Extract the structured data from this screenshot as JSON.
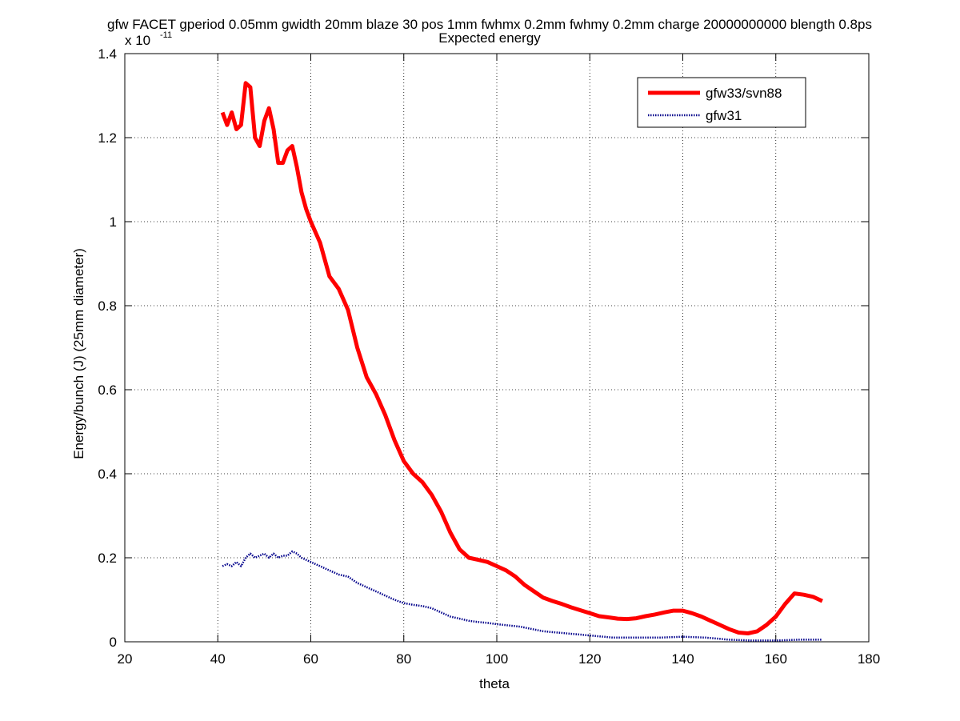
{
  "chart_data": {
    "type": "line",
    "title_lines": [
      "gfw FACET gperiod 0.05mm gwidth 20mm blaze 30 pos 1mm fwhmx 0.2mm fwhmy 0.2mm charge 20000000000 blength 0.8ps",
      "Expected energy"
    ],
    "xlabel": "theta",
    "ylabel": "Energy/bunch (J) (25mm diameter)",
    "y_exponent_label": {
      "base": "x 10",
      "exponent": "-11"
    },
    "xlim": [
      20,
      180
    ],
    "ylim": [
      0,
      1.4
    ],
    "x_ticks": [
      "20",
      "40",
      "60",
      "80",
      "100",
      "120",
      "140",
      "160",
      "180"
    ],
    "y_ticks": [
      "0",
      "0.2",
      "0.4",
      "0.6",
      "0.8",
      "1",
      "1.2",
      "1.4"
    ],
    "grid": true,
    "legend_position": "top-right",
    "series": [
      {
        "name": "gfw33/svn88",
        "color": "#ff0000",
        "style": "solid",
        "x": [
          41,
          42,
          43,
          44,
          45,
          46,
          47,
          48,
          49,
          50,
          51,
          52,
          53,
          54,
          55,
          56,
          57,
          58,
          59,
          60,
          62,
          64,
          66,
          68,
          70,
          72,
          74,
          76,
          78,
          80,
          82,
          84,
          86,
          88,
          90,
          92,
          94,
          96,
          98,
          100,
          102,
          104,
          106,
          108,
          110,
          112,
          114,
          116,
          118,
          120,
          122,
          124,
          126,
          128,
          130,
          132,
          134,
          136,
          138,
          140,
          142,
          144,
          146,
          148,
          150,
          152,
          154,
          156,
          158,
          160,
          162,
          164,
          166,
          168,
          170
        ],
        "y": [
          1.26,
          1.23,
          1.26,
          1.22,
          1.23,
          1.33,
          1.32,
          1.2,
          1.18,
          1.24,
          1.27,
          1.22,
          1.14,
          1.14,
          1.17,
          1.18,
          1.13,
          1.07,
          1.03,
          1.0,
          0.95,
          0.87,
          0.84,
          0.79,
          0.7,
          0.63,
          0.59,
          0.54,
          0.48,
          0.43,
          0.4,
          0.38,
          0.35,
          0.31,
          0.26,
          0.22,
          0.2,
          0.195,
          0.19,
          0.18,
          0.17,
          0.155,
          0.135,
          0.12,
          0.105,
          0.097,
          0.09,
          0.082,
          0.075,
          0.068,
          0.061,
          0.058,
          0.055,
          0.054,
          0.056,
          0.061,
          0.065,
          0.07,
          0.074,
          0.074,
          0.068,
          0.06,
          0.05,
          0.04,
          0.03,
          0.022,
          0.02,
          0.025,
          0.04,
          0.06,
          0.09,
          0.115,
          0.112,
          0.107,
          0.097
        ]
      },
      {
        "name": "gfw31",
        "color": "#00008b",
        "style": "dotted",
        "x": [
          41,
          42,
          43,
          44,
          45,
          46,
          47,
          48,
          49,
          50,
          51,
          52,
          53,
          54,
          55,
          56,
          57,
          58,
          60,
          62,
          64,
          66,
          68,
          70,
          72,
          74,
          76,
          78,
          80,
          82,
          84,
          86,
          88,
          90,
          92,
          94,
          96,
          98,
          100,
          105,
          110,
          115,
          120,
          125,
          130,
          135,
          140,
          145,
          150,
          155,
          160,
          165,
          170
        ],
        "y": [
          0.18,
          0.185,
          0.18,
          0.19,
          0.18,
          0.2,
          0.21,
          0.2,
          0.205,
          0.21,
          0.2,
          0.21,
          0.2,
          0.205,
          0.205,
          0.215,
          0.21,
          0.2,
          0.19,
          0.18,
          0.17,
          0.16,
          0.155,
          0.14,
          0.13,
          0.12,
          0.11,
          0.1,
          0.092,
          0.088,
          0.085,
          0.08,
          0.07,
          0.06,
          0.055,
          0.05,
          0.047,
          0.045,
          0.042,
          0.036,
          0.025,
          0.02,
          0.015,
          0.01,
          0.01,
          0.01,
          0.012,
          0.01,
          0.005,
          0.003,
          0.003,
          0.005,
          0.005
        ]
      }
    ]
  }
}
